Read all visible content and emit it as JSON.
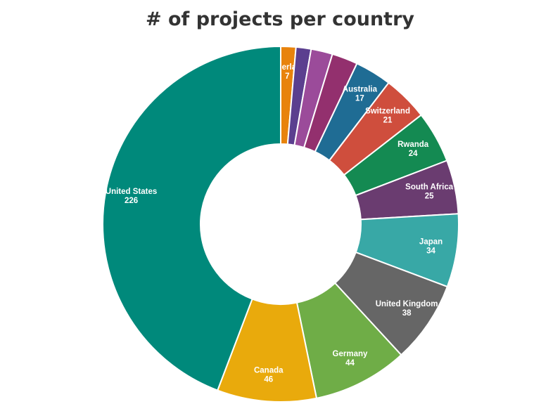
{
  "chart_data": {
    "type": "pie",
    "title": "# of projects per country",
    "slices": [
      {
        "label": "Netherlands",
        "value": 7,
        "color": "#e8830c",
        "show_label": true
      },
      {
        "label": "",
        "value": 7,
        "color": "#5b3f8f",
        "show_label": false
      },
      {
        "label": "",
        "value": 10,
        "color": "#9b4b9a",
        "show_label": false
      },
      {
        "label": "",
        "value": 12,
        "color": "#93306e",
        "show_label": false
      },
      {
        "label": "Australia",
        "value": 17,
        "color": "#1f6c94",
        "show_label": true
      },
      {
        "label": "Switzerland",
        "value": 21,
        "color": "#cf4e3d",
        "show_label": true
      },
      {
        "label": "Rwanda",
        "value": 24,
        "color": "#148a52",
        "show_label": true
      },
      {
        "label": "South Africa",
        "value": 25,
        "color": "#6a3c70",
        "show_label": true
      },
      {
        "label": "Japan",
        "value": 34,
        "color": "#38a8a6",
        "show_label": true
      },
      {
        "label": "United Kingdom",
        "value": 38,
        "color": "#666666",
        "show_label": true
      },
      {
        "label": "Germany",
        "value": 44,
        "color": "#6fad47",
        "show_label": true
      },
      {
        "label": "Canada",
        "value": 46,
        "color": "#e9aa0c",
        "show_label": true
      },
      {
        "label": "United States",
        "value": 226,
        "color": "#00897b",
        "show_label": true
      }
    ]
  }
}
